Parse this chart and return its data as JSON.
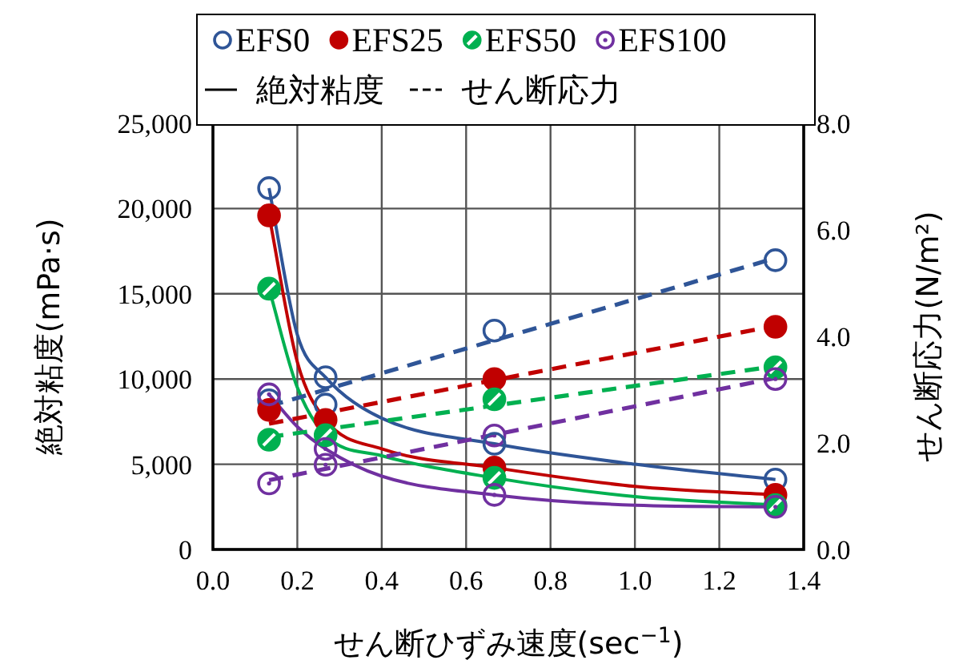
{
  "chart_data": {
    "type": "scatter",
    "xlabel": "せん断ひずみ速度(sec$^{−1}$)",
    "ylabel": "絶対粘度(mPa·s)",
    "y2label": "せん断応力(N/m²)",
    "xlim": [
      0,
      1.4
    ],
    "xticks": [
      {
        "value": 0,
        "label": "0.0"
      },
      {
        "value": 0.2,
        "label": "0.2"
      },
      {
        "value": 0.4,
        "label": "0.4"
      },
      {
        "value": 0.6,
        "label": "0.6"
      },
      {
        "value": 0.8,
        "label": "0.8"
      },
      {
        "value": 1.0,
        "label": "1.0"
      },
      {
        "value": 1.2,
        "label": "1.2"
      },
      {
        "value": 1.4,
        "label": "1.4"
      }
    ],
    "ylim": [
      0,
      25000
    ],
    "yticks": [
      0,
      {
        "value": 5000,
        "label": "5,000"
      },
      {
        "value": 10000,
        "label": "10,000"
      },
      {
        "value": 15000,
        "label": "15,000"
      },
      {
        "value": 20000,
        "label": "20,000"
      },
      {
        "value": 25000,
        "label": "25,000"
      }
    ],
    "y2lim": [
      0,
      8
    ],
    "y2ticks": [
      {
        "value": 0,
        "label": "0.0"
      },
      {
        "value": 2,
        "label": "2.0"
      },
      {
        "value": 4,
        "label": "4.0"
      },
      {
        "value": 6,
        "label": "6.0"
      },
      {
        "value": 8,
        "label": "8.0"
      }
    ],
    "grid": true,
    "legend": "top",
    "annotations": [
      "絶対粘度",
      "せん断応力"
    ],
    "series": [
      {
        "axis": "y2",
        "marker": "circle",
        "color": "#2f5597",
        "x": [
          0.133,
          0.267,
          0.667,
          1.333
        ],
        "values": [
          2.8,
          2.72,
          4.11,
          5.43
        ]
      },
      {
        "axis": "y2",
        "marker": "circle",
        "color": "#c00000",
        "x": [
          0.133,
          0.667,
          1.333
        ],
        "values": [
          2.62,
          3.2,
          4.18
        ]
      },
      {
        "axis": "y2",
        "marker": "circle",
        "color": "#00b050",
        "x": [
          0.133,
          0.667,
          1.333
        ],
        "values": [
          2.06,
          2.82,
          3.42
        ]
      },
      {
        "axis": "y2",
        "marker": "circle",
        "color": "#7030a0",
        "x": [
          0.133,
          0.267,
          0.667,
          1.333
        ],
        "values": [
          1.24,
          1.59,
          2.14,
          3.2
        ]
      },
      {
        "name": "EFS0",
        "marker": "circle",
        "color": "#2f5597",
        "x": [
          0.133,
          0.267,
          0.667,
          1.333
        ],
        "values": [
          21200,
          10100,
          6200,
          4100
        ]
      },
      {
        "name": "EFS25",
        "marker": "circle",
        "color": "#c00000",
        "x": [
          0.133,
          0.267,
          0.667,
          1.333
        ],
        "values": [
          19600,
          7600,
          4800,
          3200
        ]
      },
      {
        "name": "EFS50",
        "marker": "circle",
        "color": "#00b050",
        "x": [
          0.133,
          0.267,
          0.667,
          1.333
        ],
        "values": [
          15300,
          6700,
          4200,
          2600
        ]
      },
      {
        "name": "EFS100",
        "marker": "circle",
        "color": "#7030a0",
        "x": [
          0.133,
          0.267,
          0.667,
          1.333
        ],
        "values": [
          9100,
          5900,
          3200,
          2500
        ]
      },
      {
        "type": "line",
        "line_style": "solid",
        "color": "#2f5597",
        "x": [
          0.133,
          0.2,
          0.267,
          0.4,
          0.667,
          1.0,
          1.333
        ],
        "values": [
          21200,
          12600,
          10100,
          7700,
          6200,
          5000,
          4100
        ]
      },
      {
        "type": "line",
        "line_style": "solid",
        "color": "#c00000",
        "x": [
          0.133,
          0.2,
          0.267,
          0.4,
          0.667,
          1.0,
          1.333
        ],
        "values": [
          19600,
          11000,
          7600,
          5900,
          4800,
          3700,
          3200
        ]
      },
      {
        "type": "line",
        "line_style": "solid",
        "color": "#00b050",
        "x": [
          0.133,
          0.2,
          0.267,
          0.4,
          0.667,
          1.0,
          1.333
        ],
        "values": [
          15300,
          9500,
          6700,
          5500,
          4200,
          3100,
          2600
        ]
      },
      {
        "type": "line",
        "line_style": "solid",
        "color": "#7030a0",
        "x": [
          0.133,
          0.2,
          0.267,
          0.4,
          0.667,
          1.0,
          1.333
        ],
        "values": [
          9100,
          7200,
          5900,
          4300,
          3200,
          2600,
          2500
        ]
      },
      {
        "type": "line",
        "line_style": "dashed",
        "axis": "y2",
        "color": "#2f5597",
        "x": [
          0.133,
          1.333
        ],
        "values": [
          2.69,
          5.47
        ]
      },
      {
        "type": "line",
        "line_style": "dashed",
        "axis": "y2",
        "color": "#c00000",
        "x": [
          0.133,
          1.333
        ],
        "values": [
          2.36,
          4.2
        ]
      },
      {
        "type": "line",
        "line_style": "dashed",
        "axis": "y2",
        "color": "#00b050",
        "x": [
          0.133,
          1.333
        ],
        "values": [
          2.11,
          3.44
        ]
      },
      {
        "type": "line",
        "line_style": "dashed",
        "axis": "y2",
        "color": "#7030a0",
        "x": [
          0.133,
          1.333
        ],
        "values": [
          1.3,
          3.22
        ]
      }
    ]
  }
}
